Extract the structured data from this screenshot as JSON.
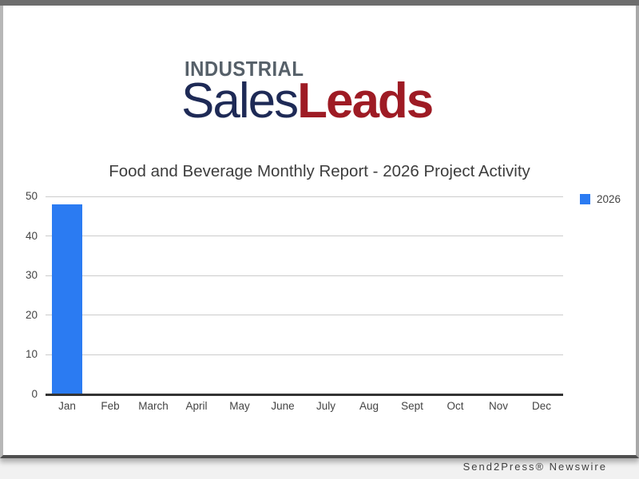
{
  "logo": {
    "top_text": "INDUSTRIAL",
    "main_left": "Sales",
    "main_right": "Leads",
    "colors": {
      "top_text": "#566069",
      "main_left": "#1e2a56",
      "main_right": "#9e1b24"
    }
  },
  "chart_data": {
    "type": "bar",
    "title": "Food and Beverage Monthly Report - 2026 Project Activity",
    "categories": [
      "Jan",
      "Feb",
      "March",
      "April",
      "May",
      "June",
      "July",
      "Aug",
      "Sept",
      "Oct",
      "Nov",
      "Dec"
    ],
    "series": [
      {
        "name": "2026",
        "color": "#2b7bf2",
        "values": [
          48,
          0,
          0,
          0,
          0,
          0,
          0,
          0,
          0,
          0,
          0,
          0
        ]
      }
    ],
    "xlabel": "",
    "ylabel": "",
    "ylim": [
      0,
      50
    ],
    "yticks": [
      0,
      10,
      20,
      30,
      40,
      50
    ],
    "grid": true,
    "gridline_color": "#cccccc",
    "axis_line_color": "#333333",
    "legend_position": "right-top"
  },
  "footer": {
    "credit": "Send2Press® Newswire"
  }
}
